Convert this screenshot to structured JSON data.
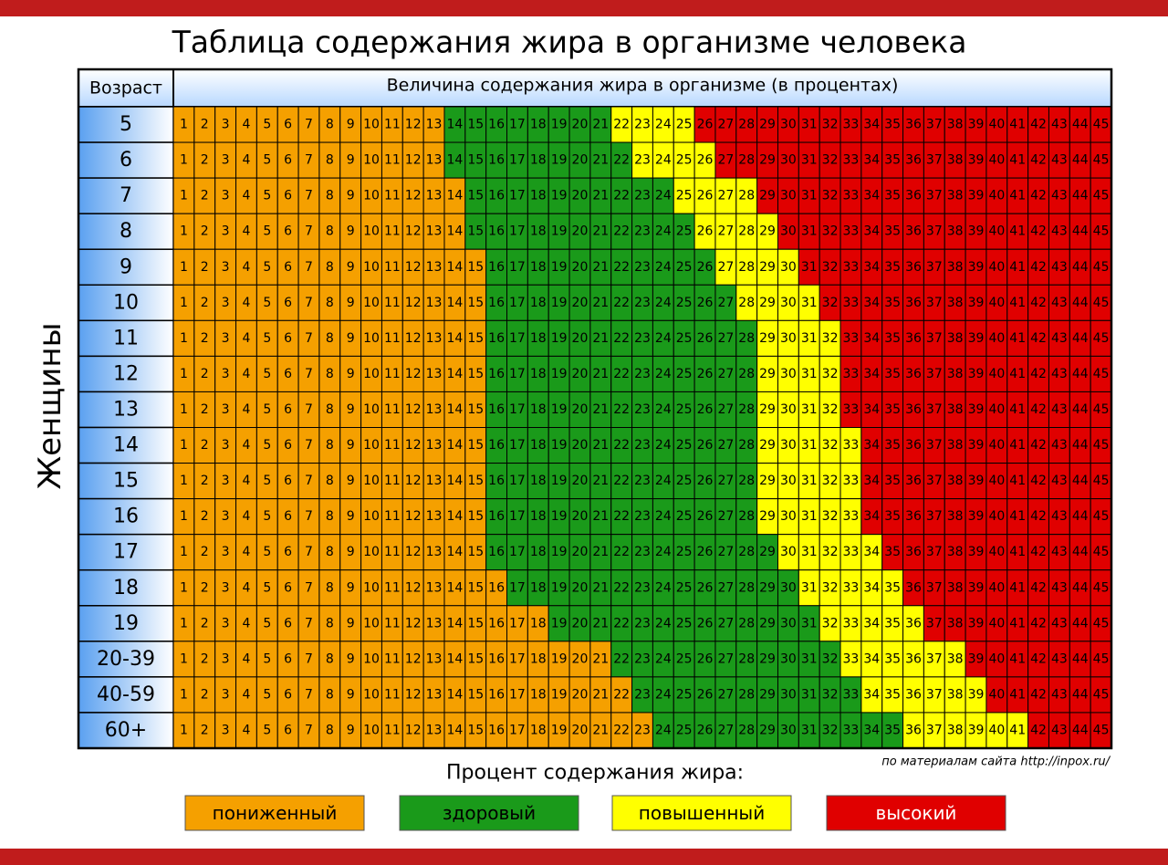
{
  "header": {
    "title": "Таблица содержания жира в организме человека"
  },
  "table": {
    "age_header": "Возраст",
    "value_header": "Величина содержания жира в организме (в процентах)",
    "group": "Женщины",
    "values": [
      1,
      2,
      3,
      4,
      5,
      6,
      7,
      8,
      9,
      10,
      11,
      12,
      13,
      14,
      15,
      16,
      17,
      18,
      19,
      20,
      21,
      22,
      23,
      24,
      25,
      26,
      27,
      28,
      29,
      30,
      31,
      32,
      33,
      34,
      35,
      36,
      37,
      38,
      39,
      40,
      41,
      42,
      43,
      44,
      45
    ],
    "rows": [
      {
        "age": "5",
        "ranges": [
          13,
          21,
          25
        ]
      },
      {
        "age": "6",
        "ranges": [
          13,
          22,
          26
        ]
      },
      {
        "age": "7",
        "ranges": [
          14,
          24,
          28
        ]
      },
      {
        "age": "8",
        "ranges": [
          14,
          25,
          29
        ]
      },
      {
        "age": "9",
        "ranges": [
          15,
          26,
          30
        ]
      },
      {
        "age": "10",
        "ranges": [
          15,
          27,
          31
        ]
      },
      {
        "age": "11",
        "ranges": [
          15,
          28,
          32
        ]
      },
      {
        "age": "12",
        "ranges": [
          15,
          28,
          32
        ]
      },
      {
        "age": "13",
        "ranges": [
          15,
          28,
          32
        ]
      },
      {
        "age": "14",
        "ranges": [
          15,
          28,
          33
        ]
      },
      {
        "age": "15",
        "ranges": [
          15,
          28,
          33
        ]
      },
      {
        "age": "16",
        "ranges": [
          15,
          28,
          33
        ]
      },
      {
        "age": "17",
        "ranges": [
          15,
          29,
          34
        ]
      },
      {
        "age": "18",
        "ranges": [
          16,
          30,
          35
        ]
      },
      {
        "age": "19",
        "ranges": [
          18,
          31,
          36
        ]
      },
      {
        "age": "20-39",
        "ranges": [
          21,
          32,
          38
        ]
      },
      {
        "age": "40-59",
        "ranges": [
          22,
          33,
          39
        ]
      },
      {
        "age": "60+",
        "ranges": [
          23,
          35,
          41
        ]
      }
    ]
  },
  "source": "по материалам сайта http://inpox.ru/",
  "legend": {
    "title": "Процент содержания жира:",
    "items": [
      {
        "label": "пониженный",
        "color": "#f5a000"
      },
      {
        "label": "здоровый",
        "color": "#1a9a1a"
      },
      {
        "label": "повышенный",
        "color": "#ffff00"
      },
      {
        "label": "высокий",
        "color": "#e00000"
      }
    ]
  }
}
